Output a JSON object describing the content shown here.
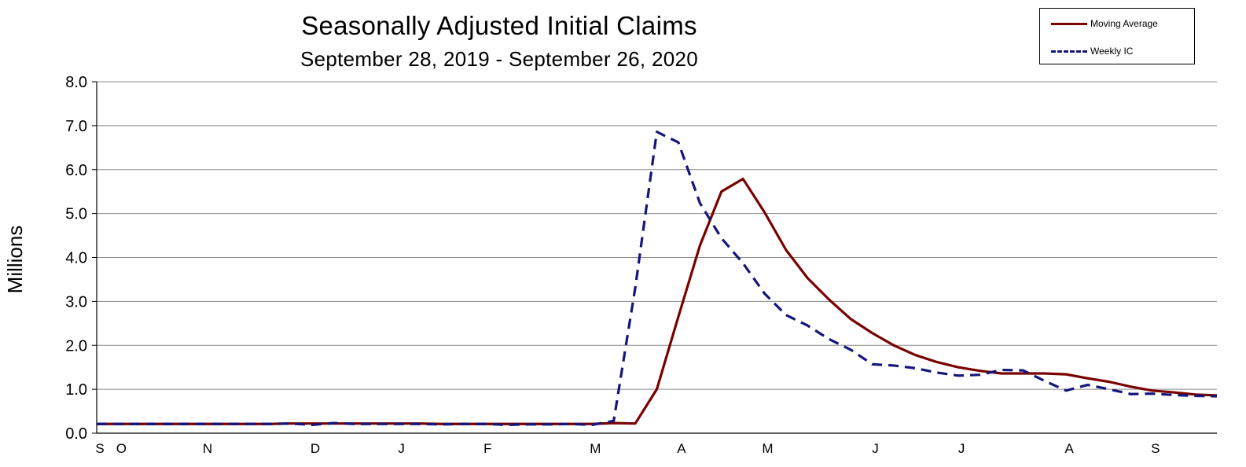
{
  "chart_data": {
    "type": "line",
    "title": "Seasonally Adjusted Initial Claims",
    "subtitle": "September 28, 2019 - September 26, 2020",
    "ylabel": "Millions",
    "xlabel": "",
    "ylim": [
      0,
      8
    ],
    "yticks": [
      "0.0",
      "1.0",
      "2.0",
      "3.0",
      "4.0",
      "5.0",
      "6.0",
      "7.0",
      "8.0"
    ],
    "grid": true,
    "legend_position": "top-right",
    "x_month_labels": [
      {
        "label": "S",
        "week": 0
      },
      {
        "label": "O",
        "week": 1
      },
      {
        "label": "N",
        "week": 5
      },
      {
        "label": "D",
        "week": 10
      },
      {
        "label": "J",
        "week": 14
      },
      {
        "label": "F",
        "week": 18
      },
      {
        "label": "M",
        "week": 23
      },
      {
        "label": "A",
        "week": 27
      },
      {
        "label": "M",
        "week": 31
      },
      {
        "label": "J",
        "week": 36
      },
      {
        "label": "J",
        "week": 40
      },
      {
        "label": "A",
        "week": 45
      },
      {
        "label": "S",
        "week": 49
      }
    ],
    "weeks_total": 52,
    "series": [
      {
        "name": "Moving Average",
        "color": "#7a0000",
        "style": "solid",
        "values": [
          0.21,
          0.21,
          0.21,
          0.21,
          0.21,
          0.21,
          0.21,
          0.21,
          0.21,
          0.22,
          0.22,
          0.22,
          0.22,
          0.22,
          0.22,
          0.22,
          0.21,
          0.21,
          0.21,
          0.21,
          0.21,
          0.21,
          0.21,
          0.21,
          0.23,
          0.22,
          1.0,
          2.65,
          4.27,
          5.5,
          5.79,
          5.03,
          4.17,
          3.53,
          3.04,
          2.6,
          2.28,
          2.0,
          1.78,
          1.62,
          1.5,
          1.42,
          1.36,
          1.36,
          1.36,
          1.34,
          1.25,
          1.17,
          1.06,
          0.97,
          0.93,
          0.88,
          0.86
        ]
      },
      {
        "name": "Weekly IC",
        "color": "#15157a",
        "style": "dashed",
        "values": [
          0.21,
          0.21,
          0.21,
          0.21,
          0.21,
          0.21,
          0.21,
          0.21,
          0.21,
          0.22,
          0.19,
          0.23,
          0.21,
          0.21,
          0.21,
          0.21,
          0.2,
          0.21,
          0.21,
          0.19,
          0.2,
          0.2,
          0.21,
          0.19,
          0.28,
          3.31,
          6.86,
          6.62,
          5.24,
          4.44,
          3.87,
          3.18,
          2.69,
          2.45,
          2.14,
          1.9,
          1.57,
          1.54,
          1.48,
          1.38,
          1.31,
          1.33,
          1.44,
          1.43,
          1.19,
          0.97,
          1.1,
          1.0,
          0.89,
          0.9,
          0.87,
          0.85,
          0.84
        ]
      }
    ]
  }
}
